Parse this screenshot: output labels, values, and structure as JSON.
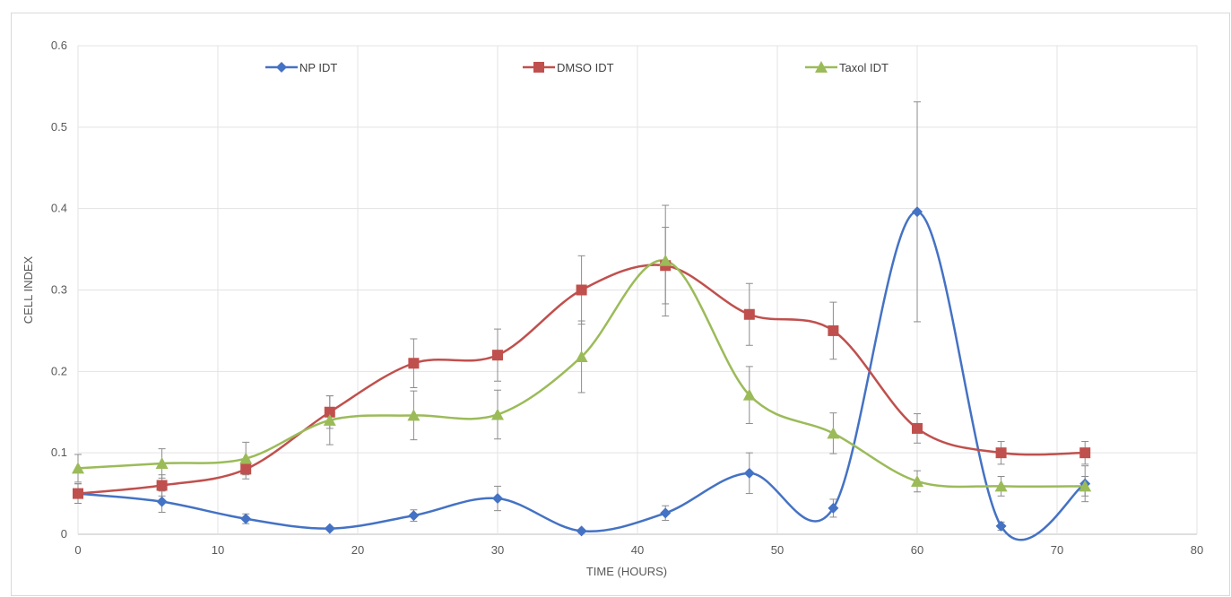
{
  "chart_data": {
    "type": "line",
    "xlabel": "TIME (HOURS)",
    "ylabel": "CELL INDEX",
    "xlim": [
      0,
      80
    ],
    "ylim": [
      0,
      0.6
    ],
    "x_ticks": [
      "0",
      "10",
      "20",
      "30",
      "40",
      "50",
      "60",
      "70",
      "80"
    ],
    "y_ticks": [
      "0",
      "0.1",
      "0.2",
      "0.3",
      "0.4",
      "0.5",
      "0.6"
    ],
    "grid": true,
    "legend_position": "top",
    "smoothed": true,
    "x": [
      0,
      6,
      12,
      18,
      24,
      30,
      36,
      42,
      48,
      54,
      60,
      66,
      72
    ],
    "series": [
      {
        "name": "NP IDT",
        "color": "#4472c4",
        "marker": "diamond",
        "values": [
          0.05,
          0.04,
          0.019,
          0.007,
          0.023,
          0.044,
          0.004,
          0.026,
          0.075,
          0.032,
          0.396,
          0.01,
          0.062
        ],
        "errors": [
          0.012,
          0.013,
          0.006,
          0.002,
          0.007,
          0.015,
          0.002,
          0.009,
          0.025,
          0.011,
          0.135,
          0.005,
          0.022
        ]
      },
      {
        "name": "DMSO IDT",
        "color": "#c0504d",
        "marker": "square",
        "values": [
          0.05,
          0.06,
          0.08,
          0.15,
          0.21,
          0.22,
          0.3,
          0.33,
          0.27,
          0.25,
          0.13,
          0.1,
          0.1
        ],
        "errors": [
          0.012,
          0.013,
          0.012,
          0.02,
          0.03,
          0.032,
          0.042,
          0.047,
          0.038,
          0.035,
          0.018,
          0.014,
          0.014
        ]
      },
      {
        "name": "Taxol IDT",
        "color": "#9bbb59",
        "marker": "triangle",
        "values": [
          0.081,
          0.087,
          0.093,
          0.14,
          0.146,
          0.147,
          0.218,
          0.336,
          0.171,
          0.124,
          0.065,
          0.059,
          0.059
        ],
        "errors": [
          0.017,
          0.018,
          0.02,
          0.03,
          0.03,
          0.03,
          0.044,
          0.068,
          0.035,
          0.025,
          0.013,
          0.012,
          0.012
        ]
      }
    ]
  }
}
